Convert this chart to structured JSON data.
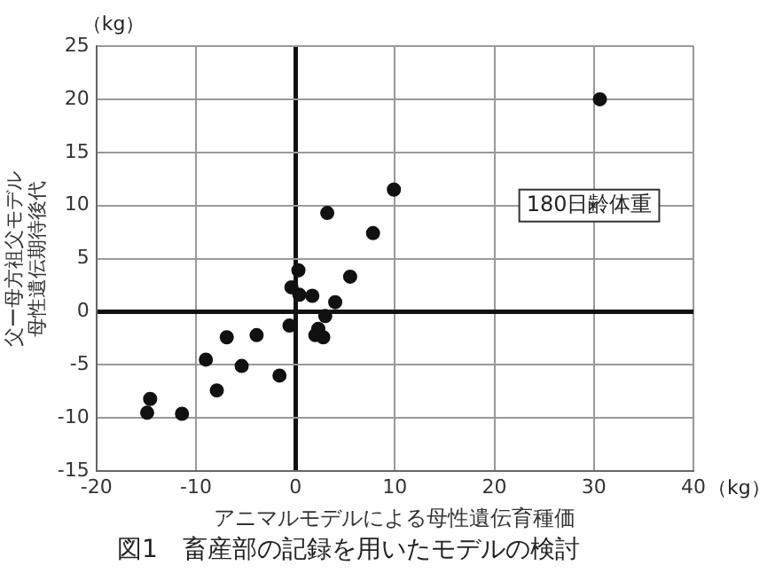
{
  "chart_data": {
    "type": "scatter",
    "title": "図1　畜産部の記録を用いたモデルの検討",
    "xlabel": "アニマルモデルによる母性遺伝育種価",
    "ylabel": "父ー母方祖父モデル母性遺伝期待後代",
    "x": [
      30.6,
      9.9,
      3.2,
      7.8,
      5.5,
      0.3,
      -0.4,
      0.4,
      1.7,
      4.0,
      -0.6,
      3.0,
      2.3,
      2.0,
      2.8,
      -3.9,
      -6.9,
      -9.0,
      -5.4,
      -1.6,
      -7.9,
      -14.6,
      -14.9,
      -11.4
    ],
    "values": [
      20.0,
      11.5,
      9.3,
      7.4,
      3.3,
      3.9,
      2.3,
      1.6,
      1.5,
      0.9,
      -1.3,
      -0.4,
      -1.6,
      -2.2,
      -2.4,
      -2.2,
      -2.4,
      -4.5,
      -5.1,
      -6.0,
      -7.4,
      -8.2,
      -9.5,
      -9.6
    ],
    "color": "#111111",
    "marker": "circle",
    "xlim": [
      -20,
      40
    ],
    "xticks": [
      -20,
      -10,
      0,
      10,
      20,
      30,
      40
    ],
    "ylim": [
      -15,
      25
    ],
    "yticks": [
      -15,
      -10,
      -5,
      0,
      5,
      10,
      15,
      20,
      25
    ],
    "grid": true,
    "legend": false,
    "annotations": [
      "（kg）",
      "（kg）",
      "180日齢体重"
    ]
  }
}
